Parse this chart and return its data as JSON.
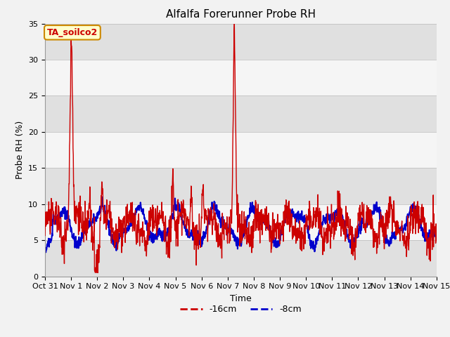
{
  "title": "Alfalfa Forerunner Probe RH",
  "xlabel": "Time",
  "ylabel": "Probe RH (%)",
  "annotation": "TA_soilco2",
  "ylim": [
    0,
    35
  ],
  "yticks": [
    0,
    5,
    10,
    15,
    20,
    25,
    30,
    35
  ],
  "xtick_labels": [
    "Oct 31",
    "Nov 1",
    "Nov 2",
    "Nov 3",
    "Nov 4",
    "Nov 5",
    "Nov 6",
    "Nov 7",
    "Nov 8",
    "Nov 9",
    "Nov 10",
    "Nov 11",
    "Nov 12",
    "Nov 13",
    "Nov 14",
    "Nov 15"
  ],
  "line1_color": "#cc0000",
  "line2_color": "#0000cc",
  "line1_label": "-16cm",
  "line2_label": "-8cm",
  "plot_bg_color": "#e8e8e8",
  "band_light": "#f5f5f5",
  "band_dark": "#e0e0e0",
  "title_fontsize": 11,
  "axis_fontsize": 9,
  "tick_fontsize": 8
}
